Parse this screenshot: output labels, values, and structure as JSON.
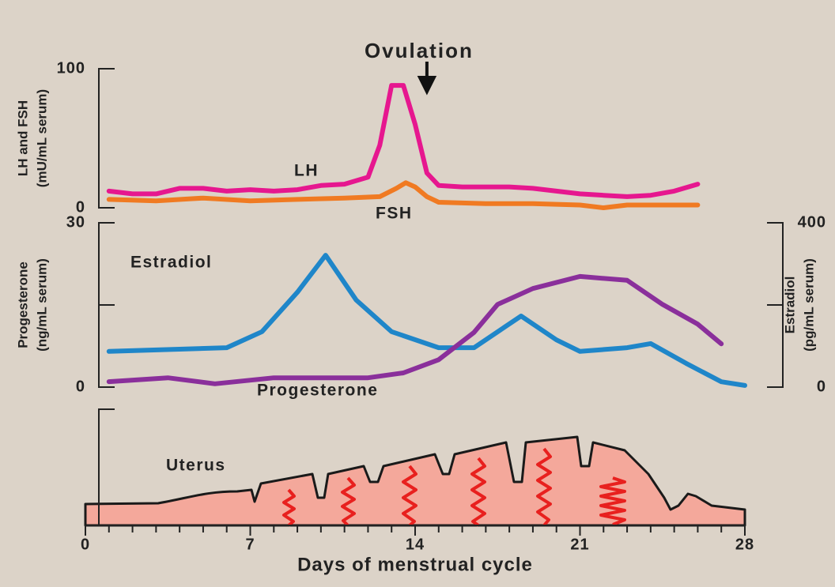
{
  "chart_data": [
    {
      "type": "line",
      "annotation": {
        "text": "Ovulation",
        "x": 14.5
      },
      "ylabel": [
        "LH and FSH",
        "(mU/mL serum)"
      ],
      "xlim": [
        0,
        28
      ],
      "ylim": [
        0,
        100
      ],
      "yticks": [
        0,
        100
      ],
      "series": [
        {
          "name": "LH",
          "color": "#e6178f",
          "x": [
            1,
            2,
            3,
            4,
            5,
            6,
            7,
            8,
            9,
            10,
            11,
            12,
            12.5,
            13,
            13.5,
            14,
            14.5,
            15,
            16,
            17,
            18,
            19,
            20,
            21,
            22,
            23,
            24,
            25,
            26
          ],
          "values": [
            12,
            10,
            10,
            14,
            14,
            12,
            13,
            12,
            13,
            16,
            17,
            22,
            45,
            88,
            88,
            60,
            25,
            16,
            15,
            15,
            15,
            14,
            12,
            10,
            9,
            8,
            9,
            12,
            17
          ]
        },
        {
          "name": "FSH",
          "color": "#f07a22",
          "x": [
            1,
            3,
            5,
            7,
            9,
            11,
            12.5,
            13.2,
            13.6,
            14,
            14.5,
            15,
            17,
            19,
            21,
            22,
            23,
            25,
            26
          ],
          "values": [
            6,
            5,
            7,
            5,
            6,
            7,
            8,
            14,
            18,
            15,
            8,
            4,
            3,
            3,
            2,
            0,
            2,
            2,
            2
          ]
        }
      ]
    },
    {
      "type": "line",
      "ylabel": [
        "Progesterone",
        "(ng/mL serum)"
      ],
      "y2label": [
        "Estradiol",
        "(pg/mL serum)"
      ],
      "xlim": [
        0,
        28
      ],
      "ylim": [
        0,
        30
      ],
      "yticks": [
        0,
        {
          "value": 15,
          "label": null
        },
        30
      ],
      "y2lim": [
        0,
        400
      ],
      "y2ticks": [
        0,
        {
          "value": 200,
          "label": null
        },
        400
      ],
      "series": [
        {
          "name": "Estradiol",
          "color": "#1f86c9",
          "axis": "y2",
          "x": [
            1,
            6,
            7.5,
            9,
            10.2,
            11.5,
            13,
            15,
            16.5,
            18.5,
            20,
            21,
            23,
            24,
            25.5,
            27,
            28
          ],
          "values": [
            87,
            96,
            135,
            231,
            321,
            212,
            135,
            96,
            96,
            173,
            115,
            87,
            96,
            106,
            58,
            13,
            4
          ]
        },
        {
          "name": "Progesterone",
          "color": "#8a2f9b",
          "x": [
            1,
            3.5,
            5.5,
            8,
            12,
            13.5,
            15,
            16.5,
            17.5,
            19,
            21,
            23,
            24.5,
            26,
            27
          ],
          "values": [
            1.0,
            1.7,
            0.6,
            1.7,
            1.7,
            2.6,
            5,
            10,
            15.1,
            18,
            20.2,
            19.5,
            15.1,
            11.5,
            7.9
          ]
        }
      ]
    },
    {
      "type": "illustration",
      "label": "Uterus",
      "xlabel": "Days of menstrual cycle",
      "xlim": [
        0,
        28
      ],
      "xticks": [
        0,
        {
          "value": 1,
          "label": null
        },
        {
          "value": 2,
          "label": null
        },
        {
          "value": 3,
          "label": null
        },
        {
          "value": 4,
          "label": null
        },
        {
          "value": 5,
          "label": null
        },
        {
          "value": 6,
          "label": null
        },
        7,
        {
          "value": 8,
          "label": null
        },
        {
          "value": 9,
          "label": null
        },
        {
          "value": 10,
          "label": null
        },
        {
          "value": 11,
          "label": null
        },
        {
          "value": 12,
          "label": null
        },
        {
          "value": 13,
          "label": null
        },
        14,
        {
          "value": 15,
          "label": null
        },
        {
          "value": 16,
          "label": null
        },
        {
          "value": 17,
          "label": null
        },
        {
          "value": 18,
          "label": null
        },
        {
          "value": 19,
          "label": null
        },
        {
          "value": 20,
          "label": null
        },
        21,
        {
          "value": 22,
          "label": null
        },
        {
          "value": 23,
          "label": null
        },
        {
          "value": 24,
          "label": null
        },
        {
          "value": 25,
          "label": null
        },
        {
          "value": 26,
          "label": null
        },
        {
          "value": 27,
          "label": null
        },
        28
      ]
    }
  ]
}
